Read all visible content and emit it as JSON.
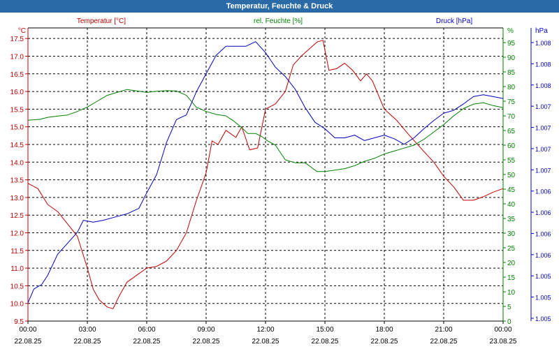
{
  "window": {
    "title": "Temperatur, Feuchte & Druck"
  },
  "colors": {
    "title_bar": "#2a6aa7",
    "temperature": "#c00000",
    "humidity": "#008000",
    "pressure": "#0000c0",
    "grid": "#000000"
  },
  "chart_data": {
    "type": "line",
    "title": "Temperatur, Feuchte & Druck",
    "x": {
      "unit": "hours since 22.08.25 00:00",
      "range": [
        0,
        24
      ],
      "ticks": [
        0,
        3,
        6,
        9,
        12,
        15,
        18,
        21,
        24
      ],
      "tick_times": [
        "00:00",
        "03:00",
        "06:00",
        "09:00",
        "12:00",
        "15:00",
        "18:00",
        "21:00",
        "00:00"
      ],
      "tick_dates": [
        "22.08.25",
        "22.08.25",
        "22.08.25",
        "22.08.25",
        "22.08.25",
        "22.08.25",
        "22.08.25",
        "22.08.25",
        "23.08.25"
      ]
    },
    "axes": {
      "left": {
        "label": "Temperatur [°C]",
        "unit": "°C",
        "range": [
          9.5,
          17.8
        ],
        "ticks": [
          "9.5",
          "10.0",
          "10.5",
          "11.0",
          "11.5",
          "12.0",
          "12.5",
          "13.0",
          "13.5",
          "14.0",
          "14.5",
          "15.0",
          "15.5",
          "16.0",
          "16.5",
          "17.0",
          "17.5"
        ]
      },
      "right_inner": {
        "label": "rel. Feuchte [%]",
        "unit": "%",
        "range": [
          0,
          100
        ],
        "ticks": [
          "0",
          "5",
          "10",
          "15",
          "20",
          "25",
          "30",
          "35",
          "40",
          "45",
          "50",
          "55",
          "60",
          "65",
          "70",
          "75",
          "80",
          "85",
          "90",
          "95"
        ]
      },
      "right_outer": {
        "label": "Druck [hPa]",
        "unit": "hPa",
        "range": [
          1.00495,
          1.00815
        ],
        "ticks": [
          "1.005",
          "1.005",
          "1.005",
          "1.006",
          "1.006",
          "1.006",
          "1.006",
          "1.007",
          "1.007",
          "1.007",
          "1.007",
          "1.008",
          "1.008",
          "1.008"
        ]
      }
    },
    "series": [
      {
        "name": "Temperatur [°C]",
        "axis": "left",
        "color": "#c00000",
        "points": [
          [
            0,
            13.4
          ],
          [
            0.5,
            13.25
          ],
          [
            1,
            12.8
          ],
          [
            1.5,
            12.6
          ],
          [
            2,
            12.25
          ],
          [
            2.5,
            11.9
          ],
          [
            3,
            11.0
          ],
          [
            3.3,
            10.4
          ],
          [
            3.6,
            10.1
          ],
          [
            4,
            9.9
          ],
          [
            4.3,
            9.85
          ],
          [
            4.6,
            10.2
          ],
          [
            5,
            10.6
          ],
          [
            5.5,
            10.8
          ],
          [
            6,
            11.0
          ],
          [
            6.5,
            11.05
          ],
          [
            7,
            11.2
          ],
          [
            7.5,
            11.5
          ],
          [
            8,
            12.0
          ],
          [
            8.5,
            12.9
          ],
          [
            9,
            13.7
          ],
          [
            9.3,
            14.6
          ],
          [
            9.6,
            14.5
          ],
          [
            10,
            14.9
          ],
          [
            10.5,
            14.7
          ],
          [
            10.8,
            15.0
          ],
          [
            11.2,
            14.35
          ],
          [
            11.6,
            14.4
          ],
          [
            12,
            15.5
          ],
          [
            12.5,
            15.65
          ],
          [
            13,
            16.0
          ],
          [
            13.4,
            16.75
          ],
          [
            13.8,
            17.0
          ],
          [
            14.2,
            17.2
          ],
          [
            14.6,
            17.4
          ],
          [
            14.9,
            17.45
          ],
          [
            15.2,
            16.6
          ],
          [
            15.6,
            16.65
          ],
          [
            16,
            16.8
          ],
          [
            16.4,
            16.6
          ],
          [
            16.8,
            16.3
          ],
          [
            17.1,
            16.5
          ],
          [
            17.4,
            16.3
          ],
          [
            18,
            15.5
          ],
          [
            18.6,
            15.2
          ],
          [
            19.2,
            14.8
          ],
          [
            20,
            14.3
          ],
          [
            20.5,
            14.0
          ],
          [
            21,
            13.6
          ],
          [
            21.5,
            13.3
          ],
          [
            22,
            12.92
          ],
          [
            22.5,
            12.92
          ],
          [
            23,
            13.02
          ],
          [
            23.5,
            13.15
          ],
          [
            24,
            13.25
          ]
        ]
      },
      {
        "name": "rel. Feuchte [%]",
        "axis": "right_inner",
        "color": "#008000",
        "points": [
          [
            0,
            68.5
          ],
          [
            0.6,
            68.8
          ],
          [
            1,
            69.5
          ],
          [
            1.6,
            70
          ],
          [
            2,
            70.3
          ],
          [
            2.5,
            71.5
          ],
          [
            3,
            73
          ],
          [
            3.5,
            75
          ],
          [
            4,
            77
          ],
          [
            4.5,
            78
          ],
          [
            5,
            79
          ],
          [
            5.5,
            78.5
          ],
          [
            6,
            78
          ],
          [
            6.5,
            78.4
          ],
          [
            7,
            78.6
          ],
          [
            7.5,
            78.5
          ],
          [
            8,
            77
          ],
          [
            8.5,
            73
          ],
          [
            9,
            71.5
          ],
          [
            9.5,
            70.5
          ],
          [
            10,
            70
          ],
          [
            10.4,
            68.2
          ],
          [
            10.8,
            66
          ],
          [
            11.1,
            64
          ],
          [
            11.5,
            64
          ],
          [
            11.8,
            63
          ],
          [
            12.1,
            61.5
          ],
          [
            12.5,
            60
          ],
          [
            13,
            55
          ],
          [
            13.5,
            54
          ],
          [
            14,
            54
          ],
          [
            14.3,
            52.5
          ],
          [
            14.6,
            51
          ],
          [
            15,
            51
          ],
          [
            15.5,
            51.5
          ],
          [
            16,
            52
          ],
          [
            16.5,
            53
          ],
          [
            17,
            54.5
          ],
          [
            17.5,
            55.5
          ],
          [
            18,
            57
          ],
          [
            18.5,
            58
          ],
          [
            19,
            59
          ],
          [
            19.5,
            60
          ],
          [
            20,
            62
          ],
          [
            20.5,
            64.5
          ],
          [
            21,
            67
          ],
          [
            21.5,
            70
          ],
          [
            22,
            72.5
          ],
          [
            22.5,
            74
          ],
          [
            23,
            74.5
          ],
          [
            23.5,
            73.5
          ],
          [
            24,
            72.8
          ]
        ]
      },
      {
        "name": "Druck [hPa]",
        "axis": "right_outer",
        "color": "#0000c0",
        "points": [
          [
            0,
            1.00515
          ],
          [
            0.3,
            1.0053
          ],
          [
            0.7,
            1.00535
          ],
          [
            1,
            1.00545
          ],
          [
            1.5,
            1.00568
          ],
          [
            2,
            1.0058
          ],
          [
            2.5,
            1.00592
          ],
          [
            2.8,
            1.00605
          ],
          [
            3.3,
            1.00603
          ],
          [
            3.8,
            1.00605
          ],
          [
            4.3,
            1.00608
          ],
          [
            5,
            1.00612
          ],
          [
            5.6,
            1.00618
          ],
          [
            6,
            1.00635
          ],
          [
            6.5,
            1.00655
          ],
          [
            7,
            1.0069
          ],
          [
            7.5,
            1.00715
          ],
          [
            8,
            1.0072
          ],
          [
            8.5,
            1.00745
          ],
          [
            9,
            1.00765
          ],
          [
            9.5,
            1.00785
          ],
          [
            10,
            1.00795
          ],
          [
            10.5,
            1.00795
          ],
          [
            11,
            1.00795
          ],
          [
            11.5,
            1.008
          ],
          [
            12,
            1.00788
          ],
          [
            12.5,
            1.00772
          ],
          [
            13,
            1.00762
          ],
          [
            13.5,
            1.00748
          ],
          [
            14,
            1.00728
          ],
          [
            14.5,
            1.00712
          ],
          [
            15,
            1.00705
          ],
          [
            15.5,
            1.00695
          ],
          [
            16,
            1.00695
          ],
          [
            16.5,
            1.00698
          ],
          [
            17,
            1.00692
          ],
          [
            17.5,
            1.00695
          ],
          [
            18,
            1.00698
          ],
          [
            18.5,
            1.00694
          ],
          [
            19,
            1.00688
          ],
          [
            19.5,
            1.00695
          ],
          [
            20,
            1.00705
          ],
          [
            20.5,
            1.00714
          ],
          [
            21,
            1.00722
          ],
          [
            21.5,
            1.00725
          ],
          [
            22,
            1.00732
          ],
          [
            22.5,
            1.0074
          ],
          [
            23,
            1.00742
          ],
          [
            23.5,
            1.0074
          ],
          [
            24,
            1.00738
          ]
        ]
      }
    ]
  }
}
